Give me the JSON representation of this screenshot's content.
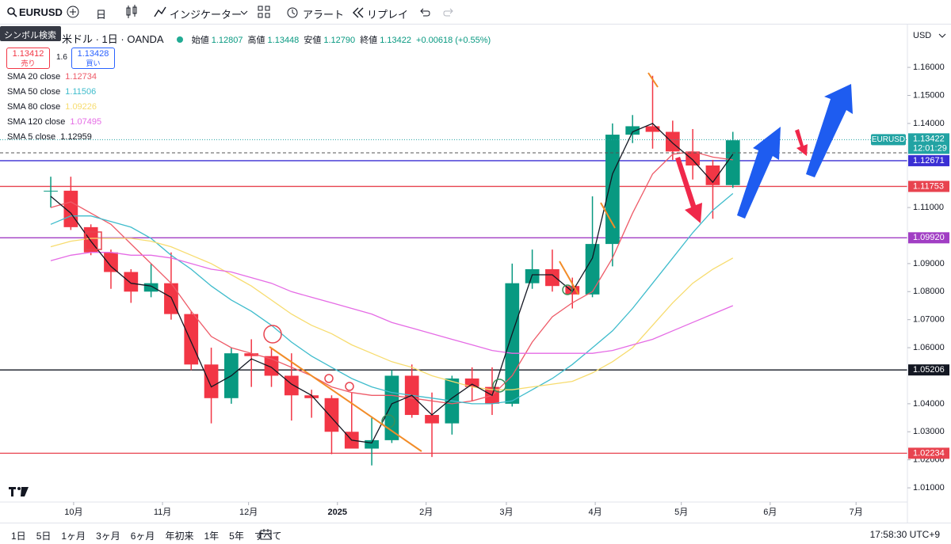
{
  "toolbar": {
    "symbol": "EURUSD",
    "interval": "日",
    "indicators": "インジケーター",
    "alerts": "アラート",
    "replay": "リプレイ",
    "tooltip": "シンボル検索"
  },
  "header": {
    "title": "米ドル · 1日 · OANDA",
    "ohlc": [
      {
        "label": "始値",
        "value": "1.12807"
      },
      {
        "label": "高値",
        "value": "1.13448"
      },
      {
        "label": "安値",
        "value": "1.12790"
      },
      {
        "label": "終値",
        "value": "1.13422"
      }
    ],
    "change": "+0.00618 (+0.55%)"
  },
  "quote": {
    "bid": "1.13412",
    "bid_label": "売り",
    "spread": "1.6",
    "ask": "1.13428",
    "ask_label": "買い"
  },
  "currency": "USD",
  "chart_data": {
    "type": "candlestick",
    "xlim": [
      -2.53,
      42.7
    ],
    "ylim": [
      1.0055,
      1.175
    ],
    "xticks": [
      {
        "value": 1.14,
        "label": "10月"
      },
      {
        "value": 5.57,
        "label": "11月"
      },
      {
        "value": 9.86,
        "label": "12月"
      },
      {
        "value": 14.29,
        "label": "2025"
      },
      {
        "value": 18.71,
        "label": "2月"
      },
      {
        "value": 22.71,
        "label": "3月"
      },
      {
        "value": 27.14,
        "label": "4月"
      },
      {
        "value": 31.43,
        "label": "5月"
      },
      {
        "value": 35.86,
        "label": "6月"
      },
      {
        "value": 40.14,
        "label": "7月"
      }
    ],
    "yticks": [
      {
        "value": 1.16,
        "label": "1.16000"
      },
      {
        "value": 1.15,
        "label": "1.15000"
      },
      {
        "value": 1.14,
        "label": "1.14000"
      },
      {
        "value": 1.11,
        "label": "1.11000"
      },
      {
        "value": 1.09,
        "label": "1.09000"
      },
      {
        "value": 1.08,
        "label": "1.08000"
      },
      {
        "value": 1.07,
        "label": "1.07000"
      },
      {
        "value": 1.06,
        "label": "1.06000"
      },
      {
        "value": 1.04,
        "label": "1.04000"
      },
      {
        "value": 1.03,
        "label": "1.03000"
      },
      {
        "value": 1.02,
        "label": "1.02000"
      },
      {
        "value": 1.01,
        "label": "1.01000"
      }
    ],
    "grid": false,
    "up_color": "#089981",
    "down_color": "#f23645",
    "open": [
      1.116,
      1.116,
      1.103,
      1.094,
      1.087,
      1.08,
      1.083,
      1.072,
      1.054,
      1.042,
      1.058,
      1.057,
      1.05,
      1.043,
      1.042,
      1.03,
      1.024,
      1.027,
      1.05,
      1.036,
      1.033,
      1.049,
      1.046,
      1.04,
      1.083,
      1.088,
      1.082,
      1.079,
      1.097,
      1.136,
      1.139,
      1.137,
      1.13,
      1.125,
      1.118
    ],
    "high": [
      1.121,
      1.121,
      1.104,
      1.095,
      1.088,
      1.09,
      1.094,
      1.073,
      1.06,
      1.06,
      1.063,
      1.06,
      1.058,
      1.045,
      1.043,
      1.044,
      1.035,
      1.052,
      1.054,
      1.044,
      1.05,
      1.053,
      1.053,
      1.09,
      1.095,
      1.095,
      1.085,
      1.114,
      1.14,
      1.143,
      1.157,
      1.141,
      1.138,
      1.127,
      1.137
    ],
    "low": [
      1.11,
      1.102,
      1.093,
      1.081,
      1.076,
      1.078,
      1.07,
      1.052,
      1.033,
      1.04,
      1.046,
      1.046,
      1.034,
      1.035,
      1.022,
      1.024,
      1.018,
      1.026,
      1.035,
      1.021,
      1.029,
      1.041,
      1.036,
      1.039,
      1.081,
      1.08,
      1.074,
      1.078,
      1.089,
      1.133,
      1.131,
      1.127,
      1.12,
      1.106,
      1.117
    ],
    "close": [
      1.116,
      1.103,
      1.094,
      1.087,
      1.08,
      1.083,
      1.072,
      1.054,
      1.042,
      1.058,
      1.057,
      1.05,
      1.043,
      1.042,
      1.03,
      1.024,
      1.027,
      1.05,
      1.036,
      1.033,
      1.049,
      1.046,
      1.04,
      1.083,
      1.088,
      1.082,
      1.079,
      1.097,
      1.136,
      1.139,
      1.137,
      1.13,
      1.125,
      1.118,
      1.134
    ],
    "series": [
      {
        "name": "SMA 20 close",
        "last": 1.12734,
        "color": "#ee5b68",
        "values": [
          1.11,
          1.112,
          1.108,
          1.104,
          1.097,
          1.09,
          1.083,
          1.073,
          1.064,
          1.06,
          1.058,
          1.056,
          1.053,
          1.05,
          1.046,
          1.044,
          1.043,
          1.043,
          1.042,
          1.041,
          1.04,
          1.041,
          1.043,
          1.05,
          1.062,
          1.071,
          1.076,
          1.08,
          1.092,
          1.108,
          1.122,
          1.129,
          1.13,
          1.128,
          1.127
        ]
      },
      {
        "name": "SMA 50 close",
        "last": 1.11506,
        "color": "#3fbccc",
        "values": [
          1.104,
          1.107,
          1.107,
          1.105,
          1.103,
          1.099,
          1.093,
          1.088,
          1.082,
          1.077,
          1.073,
          1.068,
          1.062,
          1.057,
          1.053,
          1.049,
          1.046,
          1.044,
          1.043,
          1.042,
          1.041,
          1.04,
          1.04,
          1.041,
          1.045,
          1.049,
          1.054,
          1.06,
          1.066,
          1.074,
          1.083,
          1.092,
          1.101,
          1.109,
          1.115
        ]
      },
      {
        "name": "SMA 80 close",
        "last": 1.09226,
        "color": "#f7dc6f",
        "values": [
          1.096,
          1.098,
          1.099,
          1.099,
          1.099,
          1.098,
          1.096,
          1.093,
          1.09,
          1.086,
          1.082,
          1.077,
          1.072,
          1.068,
          1.065,
          1.061,
          1.058,
          1.055,
          1.053,
          1.05,
          1.048,
          1.046,
          1.045,
          1.045,
          1.046,
          1.047,
          1.048,
          1.051,
          1.055,
          1.06,
          1.068,
          1.076,
          1.083,
          1.088,
          1.092
        ]
      },
      {
        "name": "SMA 120 close",
        "last": 1.07495,
        "color": "#e56be5",
        "values": [
          1.091,
          1.093,
          1.094,
          1.094,
          1.093,
          1.093,
          1.092,
          1.09,
          1.088,
          1.087,
          1.085,
          1.083,
          1.08,
          1.078,
          1.076,
          1.074,
          1.072,
          1.069,
          1.067,
          1.065,
          1.063,
          1.061,
          1.059,
          1.058,
          1.058,
          1.058,
          1.058,
          1.058,
          1.059,
          1.061,
          1.063,
          1.066,
          1.069,
          1.072,
          1.075
        ]
      },
      {
        "name": "SMA 5 close",
        "last": 1.12959,
        "color": "#131722",
        "values": [
          1.114,
          1.108,
          1.098,
          1.089,
          1.083,
          1.082,
          1.078,
          1.062,
          1.046,
          1.05,
          1.056,
          1.053,
          1.047,
          1.043,
          1.035,
          1.027,
          1.026,
          1.04,
          1.043,
          1.036,
          1.042,
          1.047,
          1.043,
          1.065,
          1.086,
          1.086,
          1.08,
          1.092,
          1.122,
          1.137,
          1.14,
          1.133,
          1.127,
          1.119,
          1.129
        ]
      }
    ],
    "hlines": [
      {
        "value": 1.12671,
        "label": "1.12671",
        "color": "#3a2fd4"
      },
      {
        "value": 1.11753,
        "label": "1.11753",
        "color": "#e8434f"
      },
      {
        "value": 1.0992,
        "label": "1.09920",
        "color": "#a13ec4"
      },
      {
        "value": 1.05206,
        "label": "1.05206",
        "color": "#131722"
      },
      {
        "value": 1.02234,
        "label": "1.02234",
        "color": "#e8434f"
      }
    ],
    "last": {
      "name": "EURUSD",
      "value": 1.13422,
      "label": "1.13422",
      "time": "12:01:29",
      "color": "#22a3a3"
    }
  },
  "range_buttons": [
    "1日",
    "5日",
    "1ヶ月",
    "3ヶ月",
    "6ヶ月",
    "年初来",
    "1年",
    "5年",
    "すべて"
  ],
  "clock": "17:58:30 UTC+9"
}
